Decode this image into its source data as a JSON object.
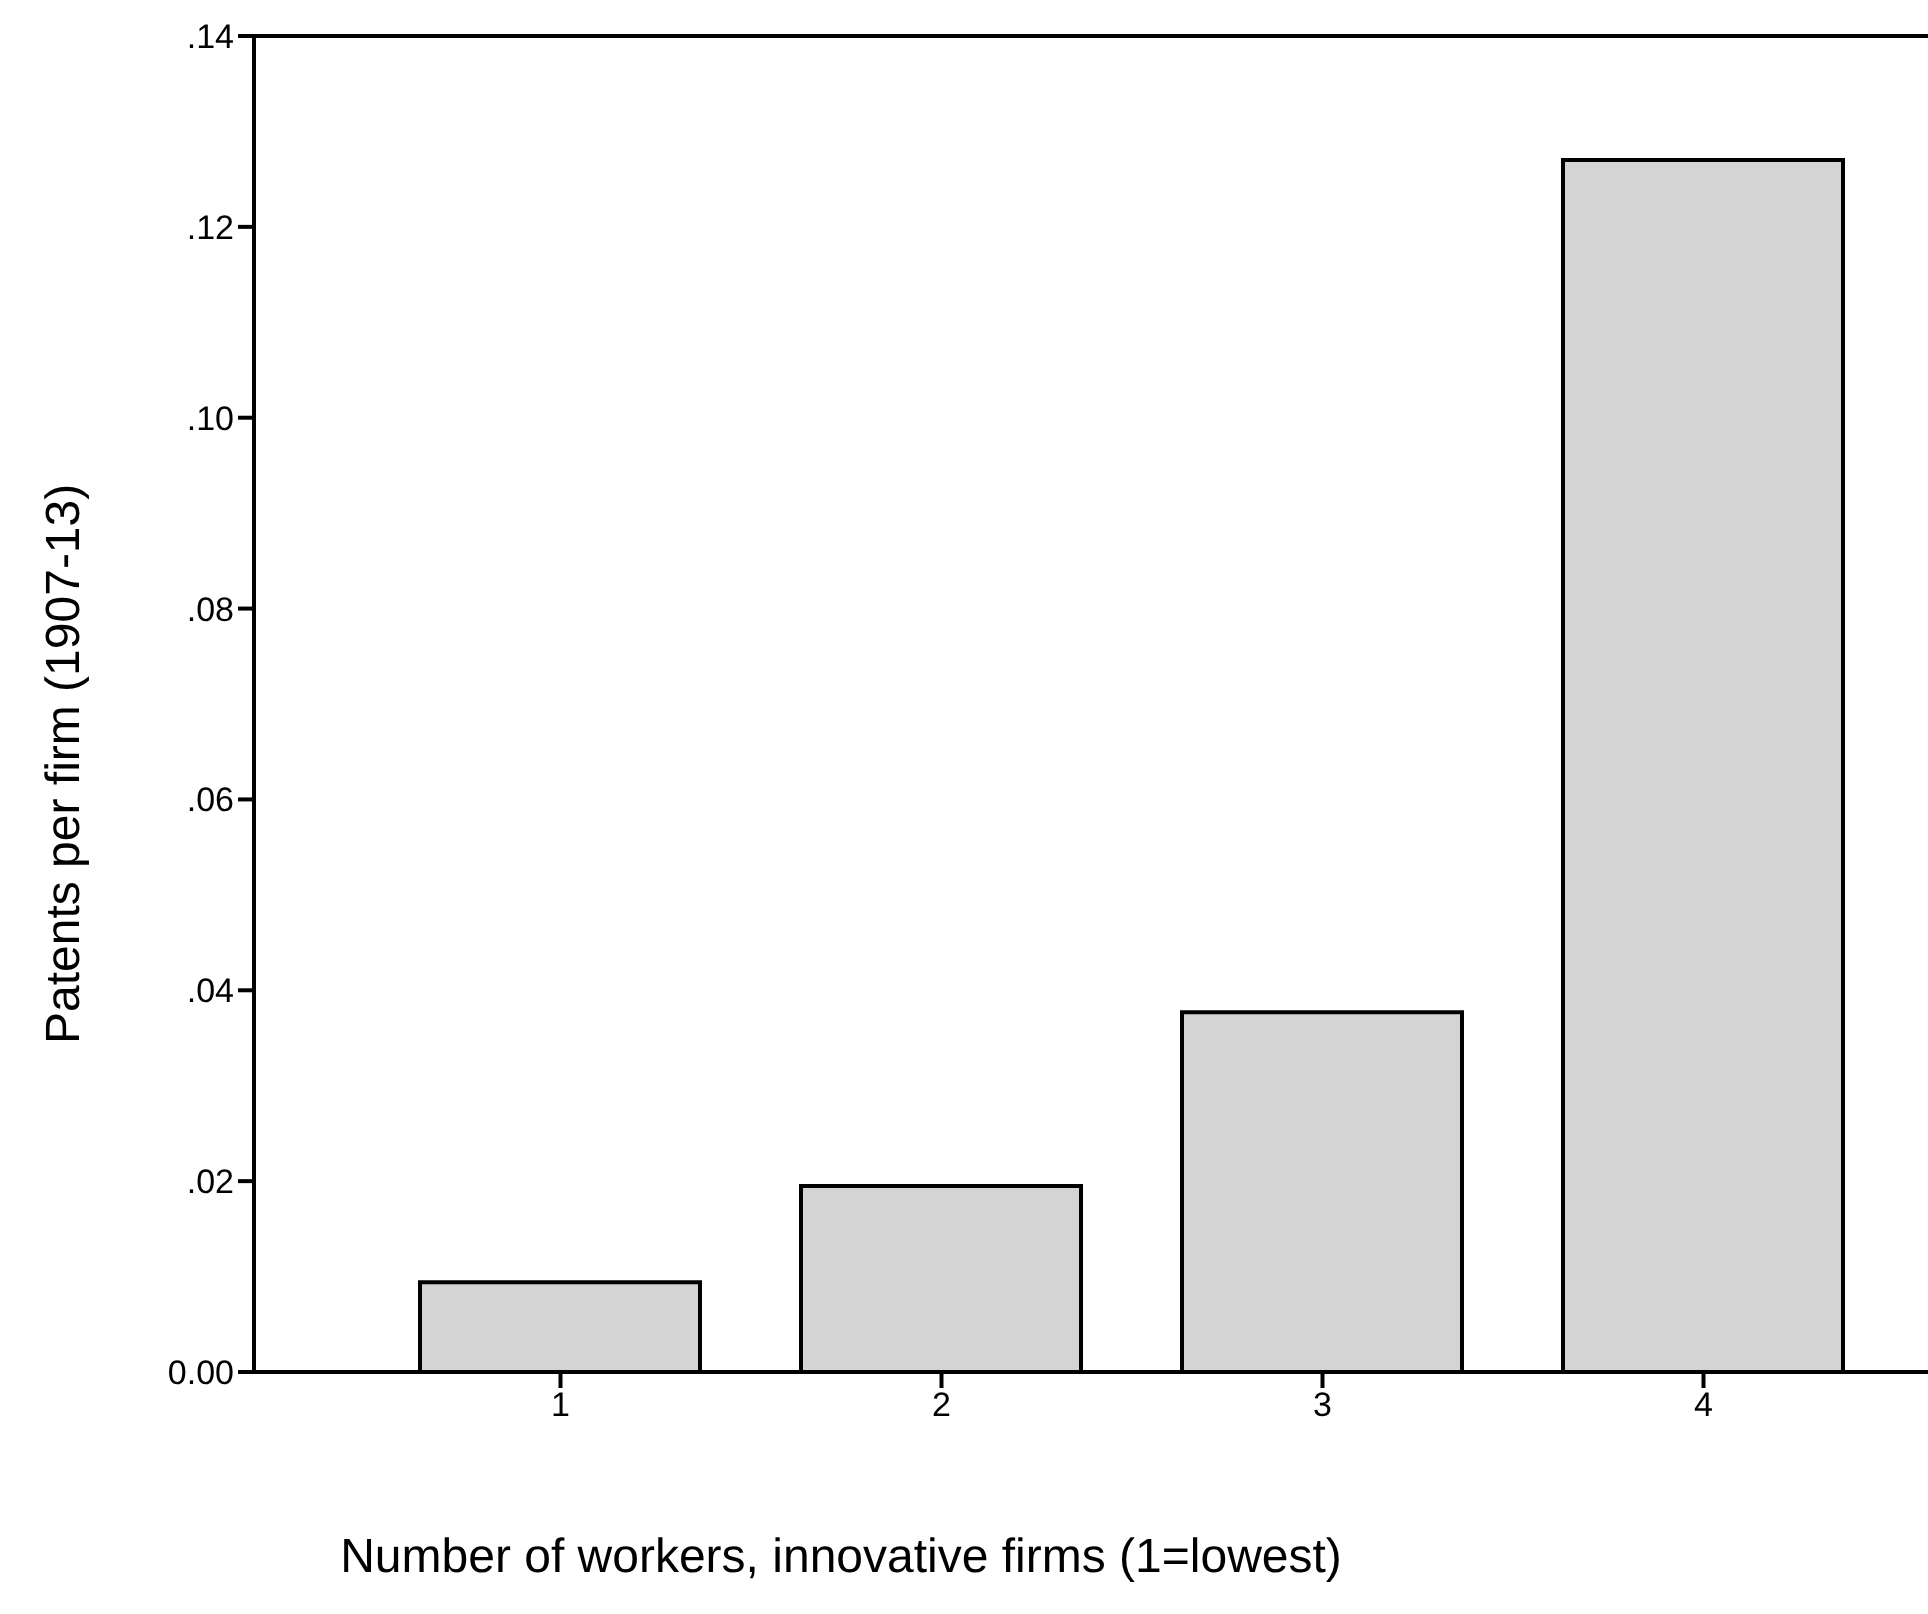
{
  "chart_data": {
    "type": "bar",
    "xlabel": "Number of workers, innovative firms (1=lowest)",
    "ylabel": "Patents per firm (1907-13)",
    "categories": [
      "1",
      "2",
      "3",
      "4"
    ],
    "values": [
      0.0094,
      0.0195,
      0.0377,
      0.127
    ],
    "color": "#d4d4d4",
    "ylim": [
      0,
      0.14
    ],
    "yticks": [
      {
        "value": 0,
        "label": "0.00"
      },
      {
        "value": 0.02,
        "label": ".02"
      },
      {
        "value": 0.04,
        "label": ".04"
      },
      {
        "value": 0.06,
        "label": ".06"
      },
      {
        "value": 0.08,
        "label": ".08"
      },
      {
        "value": 0.1,
        "label": ".10"
      },
      {
        "value": 0.12,
        "label": ".12"
      },
      {
        "value": 0.14,
        "label": ".14"
      }
    ],
    "grid": false,
    "legend": false
  }
}
